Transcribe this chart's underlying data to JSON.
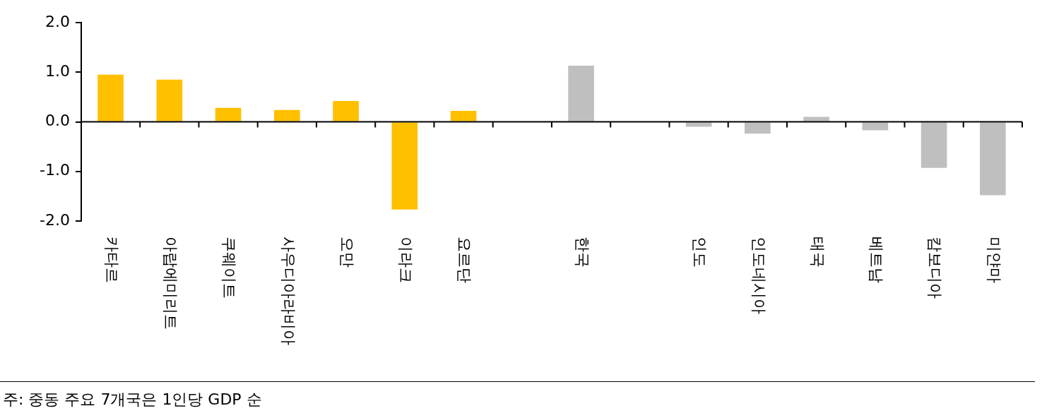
{
  "chart_data": {
    "type": "bar",
    "categories": [
      "카타르",
      "아랍에미리트",
      "쿠웨이트",
      "사우디아라비아",
      "오만",
      "이라크",
      "요르단",
      null,
      "한국",
      null,
      "인도",
      "인도네시아",
      "태국",
      "베트남",
      "캄보디아",
      "미얀마"
    ],
    "values": [
      0.95,
      0.85,
      0.28,
      0.24,
      0.42,
      -1.77,
      0.22,
      null,
      1.13,
      null,
      -0.1,
      -0.24,
      0.1,
      -0.17,
      -0.93,
      -1.48
    ],
    "colors": [
      "#ffc000",
      "#ffc000",
      "#ffc000",
      "#ffc000",
      "#ffc000",
      "#ffc000",
      "#ffc000",
      "#bfbfbf",
      "#bfbfbf",
      "#bfbfbf",
      "#bfbfbf",
      "#bfbfbf",
      "#bfbfbf",
      "#bfbfbf",
      "#bfbfbf",
      "#bfbfbf"
    ],
    "ylim": [
      -2,
      2
    ],
    "yticks": [
      {
        "value": -2,
        "label": "-2.0"
      },
      {
        "value": -1,
        "label": "-1.0"
      },
      {
        "value": 0,
        "label": "0.0"
      },
      {
        "value": 1,
        "label": "1.0"
      },
      {
        "value": 2,
        "label": "2.0"
      }
    ],
    "legend": false,
    "annotations": [
      "주: 중동 주요 7개국은 1인당 GDP 순"
    ]
  }
}
